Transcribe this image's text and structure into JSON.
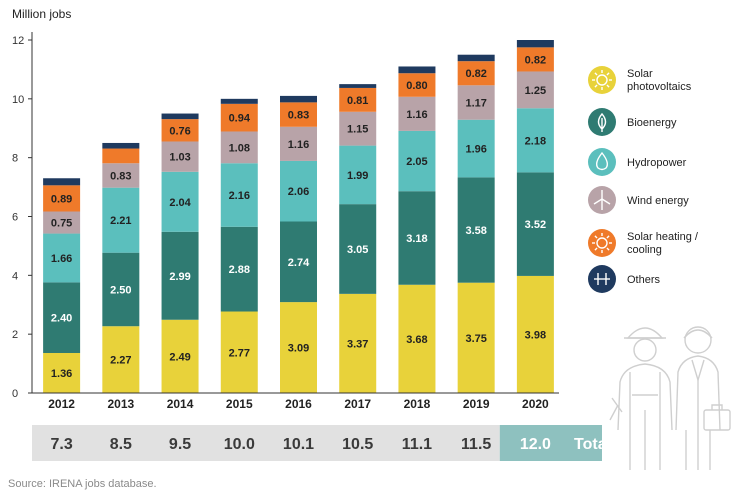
{
  "chart_data": {
    "type": "bar",
    "stacked": true,
    "ylabel": "Million jobs",
    "ylim": [
      0,
      12
    ],
    "yticks": [
      "0",
      "2",
      "4",
      "6",
      "8",
      "10",
      "12"
    ],
    "categories": [
      "2012",
      "2013",
      "2014",
      "2015",
      "2016",
      "2017",
      "2018",
      "2019",
      "2020"
    ],
    "series": [
      {
        "name": "Solar photovoltaics",
        "color": "#e8d23a",
        "label_color": "#222222",
        "icon": "sun-icon",
        "values": [
          1.36,
          2.27,
          2.49,
          2.77,
          3.09,
          3.37,
          3.68,
          3.75,
          3.98
        ],
        "labels": [
          "1.36",
          "2.27",
          "2.49",
          "2.77",
          "3.09",
          "3.37",
          "3.68",
          "3.75",
          "3.98"
        ]
      },
      {
        "name": "Bioenergy",
        "color": "#2f7b72",
        "label_color": "#ffffff",
        "icon": "leaf-icon",
        "values": [
          2.4,
          2.5,
          2.99,
          2.88,
          2.74,
          3.05,
          3.18,
          3.58,
          3.52
        ],
        "labels": [
          "2.40",
          "2.50",
          "2.99",
          "2.88",
          "2.74",
          "3.05",
          "3.18",
          "3.58",
          "3.52"
        ]
      },
      {
        "name": "Hydropower",
        "color": "#5bbfbd",
        "label_color": "#222222",
        "icon": "water-drop-icon",
        "values": [
          1.66,
          2.21,
          2.04,
          2.16,
          2.06,
          1.99,
          2.05,
          1.96,
          2.18
        ],
        "labels": [
          "1.66",
          "2.21",
          "2.04",
          "2.16",
          "2.06",
          "1.99",
          "2.05",
          "1.96",
          "2.18"
        ]
      },
      {
        "name": "Wind energy",
        "color": "#b8a3a8",
        "label_color": "#222222",
        "icon": "wind-turbine-icon",
        "values": [
          0.75,
          0.83,
          1.03,
          1.08,
          1.16,
          1.15,
          1.16,
          1.17,
          1.25
        ],
        "labels": [
          "0.75",
          "0.83",
          "1.03",
          "1.08",
          "1.16",
          "1.15",
          "1.16",
          "1.17",
          "1.25"
        ]
      },
      {
        "name": "Solar heating / cooling",
        "color": "#ef7a2a",
        "label_color": "#222222",
        "icon": "sun-heat-icon",
        "values": [
          0.89,
          0.5,
          0.76,
          0.94,
          0.83,
          0.81,
          0.8,
          0.82,
          0.82
        ],
        "labels": [
          "0.89",
          "",
          "0.76",
          "0.94",
          "0.83",
          "0.81",
          "0.80",
          "0.82",
          "0.82"
        ]
      },
      {
        "name": "Others",
        "color": "#1f3a5f",
        "label_color": "#ffffff",
        "icon": "plus-icon",
        "values": [
          0.24,
          0.19,
          0.19,
          0.17,
          0.22,
          0.13,
          0.23,
          0.22,
          0.25
        ],
        "labels": [
          "",
          "",
          "",
          "",
          "",
          "",
          "",
          "",
          ""
        ]
      }
    ],
    "totals": [
      "7.3",
      "8.5",
      "9.5",
      "10.0",
      "10.1",
      "10.5",
      "11.1",
      "11.5",
      "12.0"
    ],
    "totals_label": "Total",
    "totals_band_color": "#e1e1e1",
    "totals_highlight_color": "#8ec1bf",
    "grid": false,
    "legend_position": "right"
  },
  "source": "Source: IRENA jobs database."
}
